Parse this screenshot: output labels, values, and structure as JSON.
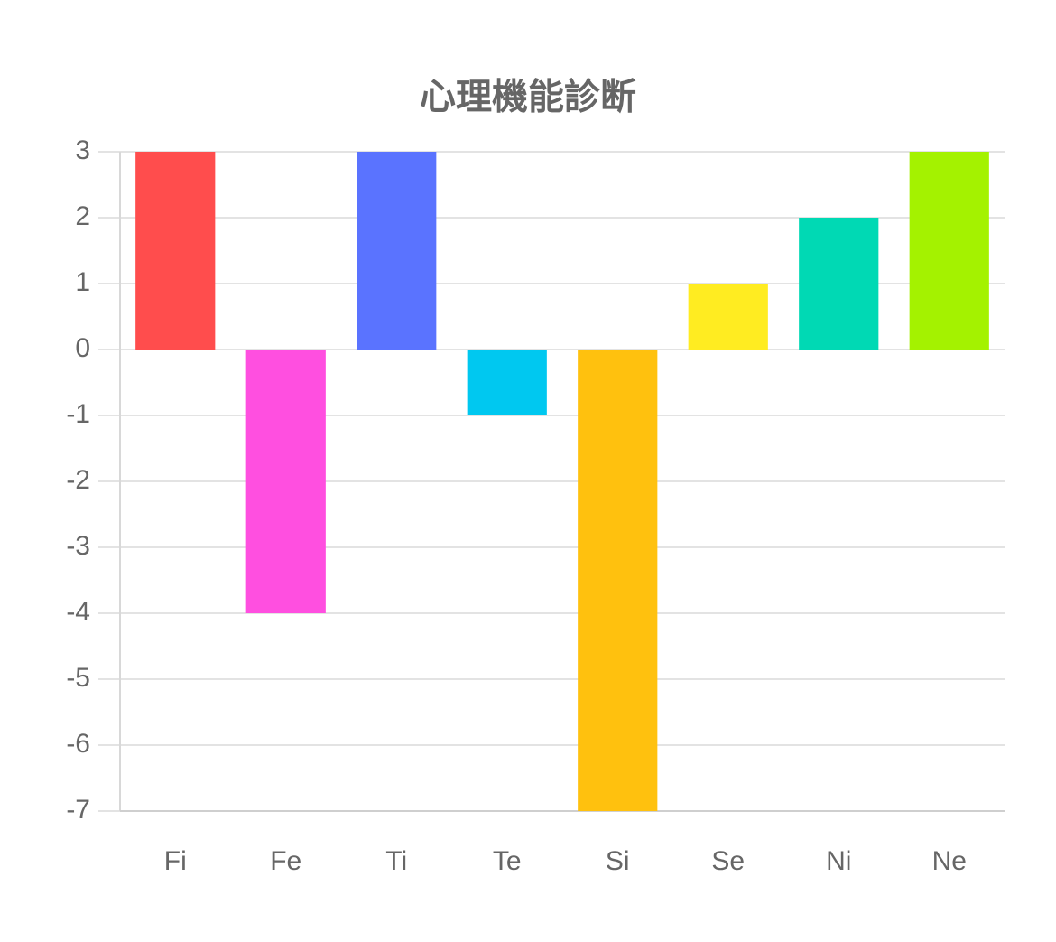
{
  "chart_data": {
    "type": "bar",
    "title": "心理機能診断",
    "categories": [
      "Fi",
      "Fe",
      "Ti",
      "Te",
      "Si",
      "Se",
      "Ni",
      "Ne"
    ],
    "values": [
      3,
      -4,
      3,
      -1,
      -7,
      1,
      2,
      3
    ],
    "colors": [
      "#ff4d4d",
      "#ff4fe0",
      "#5a73ff",
      "#00c8f0",
      "#ffc10e",
      "#ffec21",
      "#00d9b4",
      "#a4f200"
    ],
    "ylim": [
      -7,
      3
    ],
    "yticks": [
      -7,
      -6,
      -5,
      -4,
      -3,
      -2,
      -1,
      0,
      1,
      2,
      3
    ],
    "grid": true
  }
}
